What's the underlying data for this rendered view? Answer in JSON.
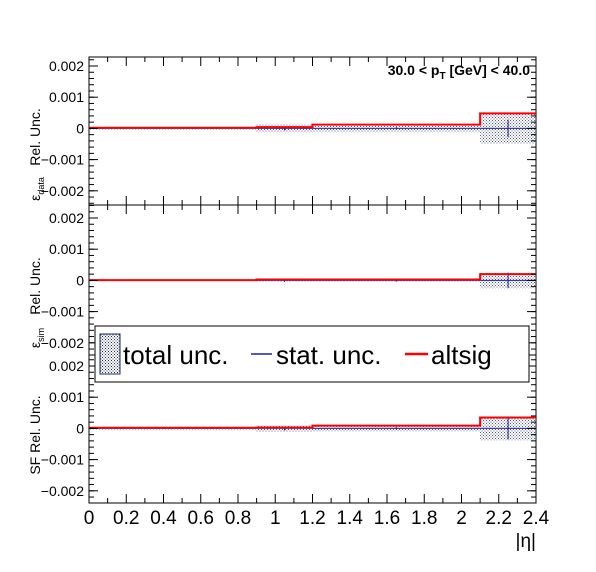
{
  "chart_data": {
    "type": "line",
    "bin_edges": [
      0,
      0.9,
      1.2,
      2.1,
      2.4
    ],
    "xlim": [
      0,
      2.4
    ],
    "ylim": [
      -0.0024,
      0.0024
    ],
    "x_ticks": [
      "0",
      "0.2",
      "0.4",
      "0.6",
      "0.8",
      "1",
      "1.2",
      "1.4",
      "1.6",
      "1.8",
      "2",
      "2.2",
      "2.4"
    ],
    "y_ticks": [
      "0.002",
      "0.001",
      "0",
      "−0.001",
      "−0.002"
    ],
    "y_tick_values": [
      0.002,
      0.001,
      0,
      -0.001,
      -0.002
    ],
    "xlabel": "|η|",
    "annotation": {
      "prefix": "30.0 < p",
      "sub": "T",
      "suffix": " [GeV] < 40.0"
    },
    "legend": [
      {
        "label": "total unc.",
        "kind": "hatch"
      },
      {
        "label": "stat. unc.",
        "kind": "line",
        "color": "#1f1fb4"
      },
      {
        "label": "altsig",
        "kind": "line",
        "color": "#ff0000"
      }
    ],
    "panels": [
      {
        "ylabel_main": "Rel. Unc.",
        "ylabel_symbol": "ε",
        "ylabel_sub": "data",
        "total_unc": [
          3e-05,
          0.00012,
          0.00012,
          0.00048
        ],
        "altsig": [
          2e-05,
          4e-05,
          0.00012,
          0.00048
        ],
        "stat_unc": [
          2e-05,
          6e-05,
          4e-05,
          0.00028
        ]
      },
      {
        "ylabel_main": "Rel. Unc.",
        "ylabel_symbol": "ε",
        "ylabel_sub": "sim",
        "total_unc": [
          2e-05,
          5e-05,
          4e-05,
          0.00025
        ],
        "altsig": [
          1e-05,
          3e-05,
          3e-05,
          0.0002
        ],
        "stat_unc": [
          2e-05,
          5e-05,
          4e-05,
          0.00025
        ]
      },
      {
        "ylabel_main": "SF Rel. Unc.",
        "ylabel_symbol": "",
        "ylabel_sub": "",
        "total_unc": [
          3e-05,
          0.0001,
          9e-05,
          0.00038
        ],
        "altsig": [
          2e-05,
          3e-05,
          9e-05,
          0.00035
        ],
        "stat_unc": [
          2e-05,
          6e-05,
          4e-05,
          0.00035
        ]
      }
    ]
  }
}
